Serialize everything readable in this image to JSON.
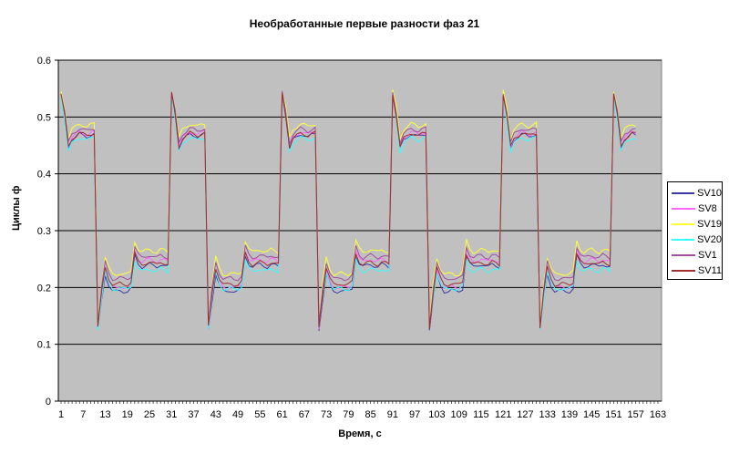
{
  "chart_data": {
    "type": "line",
    "title": "Необработанные первые разности фаз 21",
    "xlabel": "Время, с",
    "ylabel": "Циклы ф",
    "ylim": [
      0,
      0.6
    ],
    "yticks": [
      "0",
      "0.1",
      "0.2",
      "0.3",
      "0.4",
      "0.5",
      "0.6"
    ],
    "xlim": [
      1,
      163
    ],
    "xticks": [
      "1",
      "7",
      "13",
      "19",
      "25",
      "31",
      "37",
      "43",
      "49",
      "55",
      "61",
      "67",
      "73",
      "79",
      "85",
      "91",
      "97",
      "103",
      "109",
      "115",
      "121",
      "127",
      "133",
      "139",
      "145",
      "151",
      "157",
      "163"
    ],
    "grid": {
      "horizontal": true,
      "vertical": false
    },
    "plot_background": "#c0c0c0",
    "legend_position": "right",
    "n_points": 157,
    "period": 30,
    "base_cycle": [
      0.54,
      0.5,
      0.445,
      0.46,
      0.465,
      0.47,
      0.468,
      0.465,
      0.468,
      0.47,
      0.13,
      0.19,
      0.235,
      0.215,
      0.205,
      0.205,
      0.207,
      0.205,
      0.205,
      0.21,
      0.26,
      0.245,
      0.24,
      0.243,
      0.245,
      0.242,
      0.24,
      0.245,
      0.243,
      0.24
    ],
    "series": [
      {
        "name": "SV10",
        "color": "#3c3ca8",
        "offsets": [
          0.0,
          -0.012,
          -0.004
        ]
      },
      {
        "name": "SV8",
        "color": "#ff66ff",
        "offsets": [
          0.004,
          -0.005,
          0.005
        ]
      },
      {
        "name": "SV19",
        "color": "#ffff33",
        "offsets": [
          0.018,
          0.018,
          0.022
        ]
      },
      {
        "name": "SV20",
        "color": "#33ffff",
        "offsets": [
          -0.006,
          -0.008,
          -0.012
        ]
      },
      {
        "name": "SV1",
        "color": "#a050a0",
        "offsets": [
          0.01,
          0.01,
          0.012
        ]
      },
      {
        "name": "SV11",
        "color": "#a03030",
        "offsets": [
          0.002,
          0.0,
          0.0
        ]
      }
    ],
    "notes": "Periodic square-like wave with period 30 samples: high level ~0.46-0.49 (peaks ~0.55-0.56), low level ~0.20-0.27 (dips ~0.11-0.12). offsets = per-series shift for [high plateau, first low plateau, second low plateau]."
  }
}
